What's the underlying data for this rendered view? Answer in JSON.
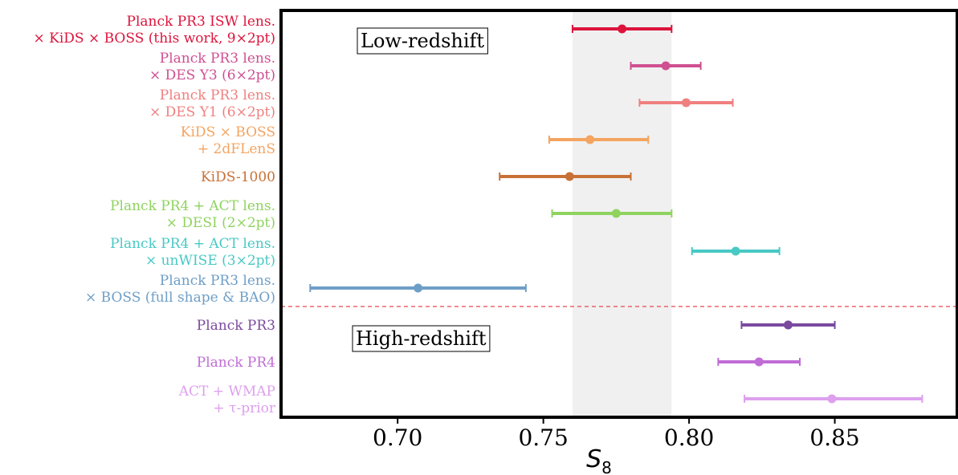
{
  "chart_data": {
    "type": "errorbar",
    "xlabel": "S",
    "xlabel_subscript": "8",
    "xlim": [
      0.66,
      0.892
    ],
    "x_ticks": [
      0.7,
      0.75,
      0.8,
      0.85
    ],
    "x_tick_labels": [
      "0.70",
      "0.75",
      "0.80",
      "0.85"
    ],
    "shaded_band": {
      "x_range": [
        0.76,
        0.794
      ],
      "color": "#f0f0f0"
    },
    "divider": {
      "after_row": 8,
      "color": "#e8474c",
      "style": "dashed"
    },
    "annotations": [
      {
        "text": "Low-redshift",
        "position": "top-left"
      },
      {
        "text": "High-redshift",
        "position": "bottom-left"
      }
    ],
    "rows": [
      {
        "lines": [
          "Planck PR3 ISW lens.",
          "× KiDS × BOSS (this work, 9×2pt)"
        ],
        "value": 0.777,
        "lo": 0.76,
        "hi": 0.794,
        "color": "#dc143c"
      },
      {
        "lines": [
          "Planck PR3 lens.",
          "× DES Y3 (6×2pt)"
        ],
        "value": 0.792,
        "lo": 0.78,
        "hi": 0.804,
        "color": "#cf4f91"
      },
      {
        "lines": [
          "Planck PR3 lens.",
          "× DES Y1 (6×2pt)"
        ],
        "value": 0.799,
        "lo": 0.783,
        "hi": 0.815,
        "color": "#f08080"
      },
      {
        "lines": [
          "KiDS × BOSS",
          "+ 2dFLenS"
        ],
        "value": 0.766,
        "lo": 0.752,
        "hi": 0.786,
        "color": "#f4a460"
      },
      {
        "lines": [
          "KiDS-1000"
        ],
        "value": 0.759,
        "lo": 0.735,
        "hi": 0.78,
        "color": "#c87137"
      },
      {
        "lines": [
          "Planck PR4 + ACT lens.",
          "× DESI (2×2pt)"
        ],
        "value": 0.775,
        "lo": 0.753,
        "hi": 0.794,
        "color": "#8fd35f"
      },
      {
        "lines": [
          "Planck PR4 + ACT lens.",
          "× unWISE (3×2pt)"
        ],
        "value": 0.816,
        "lo": 0.801,
        "hi": 0.831,
        "color": "#48c9c4"
      },
      {
        "lines": [
          "Planck PR3 lens.",
          "× BOSS (full shape & BAO)"
        ],
        "value": 0.707,
        "lo": 0.67,
        "hi": 0.744,
        "color": "#6e9ec6"
      },
      {
        "lines": [
          "Planck PR3"
        ],
        "value": 0.834,
        "lo": 0.818,
        "hi": 0.85,
        "color": "#7a4a9f"
      },
      {
        "lines": [
          "Planck PR4"
        ],
        "value": 0.824,
        "lo": 0.81,
        "hi": 0.838,
        "color": "#c06cd6"
      },
      {
        "lines": [
          "ACT + WMAP",
          "+ τ-prior"
        ],
        "value": 0.849,
        "lo": 0.819,
        "hi": 0.88,
        "color": "#dda0ee"
      }
    ]
  }
}
